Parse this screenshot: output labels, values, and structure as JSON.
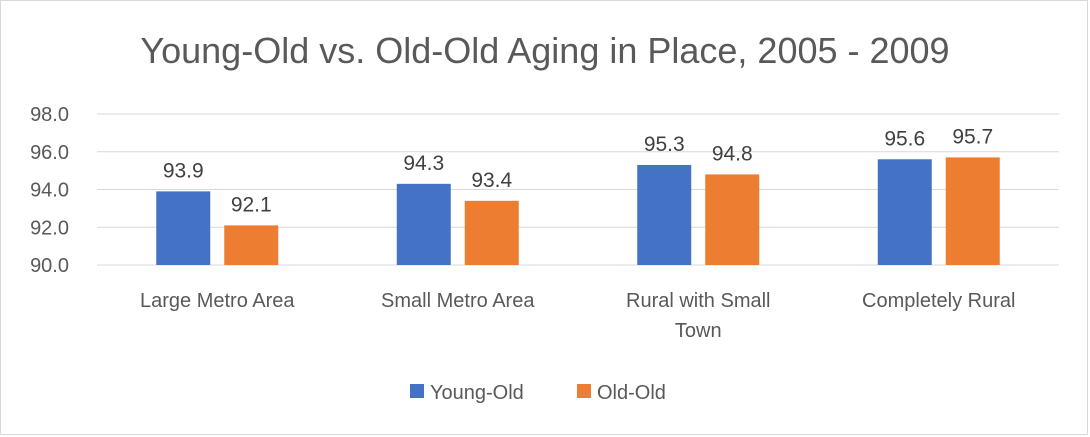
{
  "chart_data": {
    "type": "bar",
    "title": "Young-Old vs. Old-Old Aging in Place, 2005 - 2009",
    "xlabel": "",
    "ylabel": "",
    "ylim": [
      90,
      98
    ],
    "yticks": [
      "90.0",
      "92.0",
      "94.0",
      "96.0",
      "98.0"
    ],
    "grid": true,
    "legend_position": "bottom",
    "categories": [
      [
        "Large Metro Area"
      ],
      [
        "Small Metro Area"
      ],
      [
        "Rural with Small",
        "Town"
      ],
      [
        "Completely Rural"
      ]
    ],
    "series": [
      {
        "name": "Young-Old",
        "color": "#4472C4",
        "values": [
          93.9,
          94.3,
          95.3,
          95.6
        ],
        "labels": [
          "93.9",
          "94.3",
          "95.3",
          "95.6"
        ]
      },
      {
        "name": "Old-Old",
        "color": "#ED7D31",
        "values": [
          92.1,
          93.4,
          94.8,
          95.7
        ],
        "labels": [
          "92.1",
          "93.4",
          "94.8",
          "95.7"
        ]
      }
    ]
  }
}
